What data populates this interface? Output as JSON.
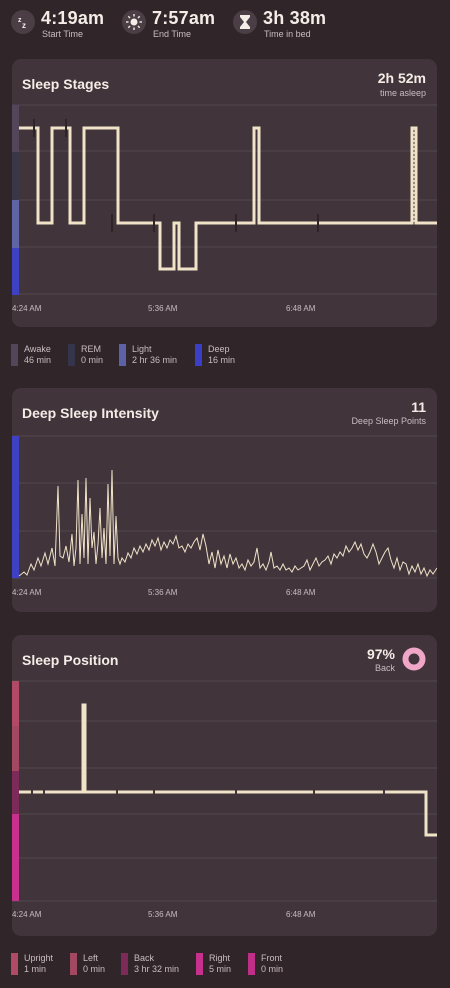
{
  "header": {
    "start": {
      "value": "4:19am",
      "label": "Start Time",
      "icon": "zzz-icon"
    },
    "end": {
      "value": "7:57am",
      "label": "End Time",
      "icon": "sun-icon"
    },
    "bed": {
      "value": "3h 38m",
      "label": "Time in bed",
      "icon": "hourglass-icon"
    }
  },
  "stages": {
    "title": "Sleep Stages",
    "value": "2h 52m",
    "value_label": "time asleep",
    "x_ticks": [
      "4:24 AM",
      "5:36 AM",
      "6:48 AM"
    ],
    "colors": {
      "awake": "#54465a",
      "rem": "#3a3748",
      "light": "#5f64a4",
      "deep": "#3f41c4"
    },
    "legend": [
      {
        "name": "Awake",
        "time": "46 min",
        "color": "#54465a"
      },
      {
        "name": "REM",
        "time": "0 min",
        "color": "#34344a"
      },
      {
        "name": "Light",
        "time": "2 hr 36 min",
        "color": "#5c62a8"
      },
      {
        "name": "Deep",
        "time": "16 min",
        "color": "#3b3fc8"
      }
    ]
  },
  "intensity": {
    "title": "Deep Sleep Intensity",
    "value": "11",
    "value_label": "Deep Sleep Points",
    "x_ticks": [
      "4:24 AM",
      "5:36 AM",
      "6:48 AM"
    ],
    "color": "#3f41c4"
  },
  "position": {
    "title": "Sleep Position",
    "value": "97%",
    "value_label": "Back",
    "ring_color": "#f0a6c6",
    "x_ticks": [
      "4:24 AM",
      "5:36 AM",
      "6:48 AM"
    ],
    "legend": [
      {
        "name": "Upright",
        "time": "1 min",
        "color": "#b04a66"
      },
      {
        "name": "Left",
        "time": "0 min",
        "color": "#a24863"
      },
      {
        "name": "Back",
        "time": "3 hr 32 min",
        "color": "#7c2a58"
      },
      {
        "name": "Right",
        "time": "5 min",
        "color": "#c8308e"
      },
      {
        "name": "Front",
        "time": "0 min",
        "color": "#c02f87"
      }
    ]
  }
}
